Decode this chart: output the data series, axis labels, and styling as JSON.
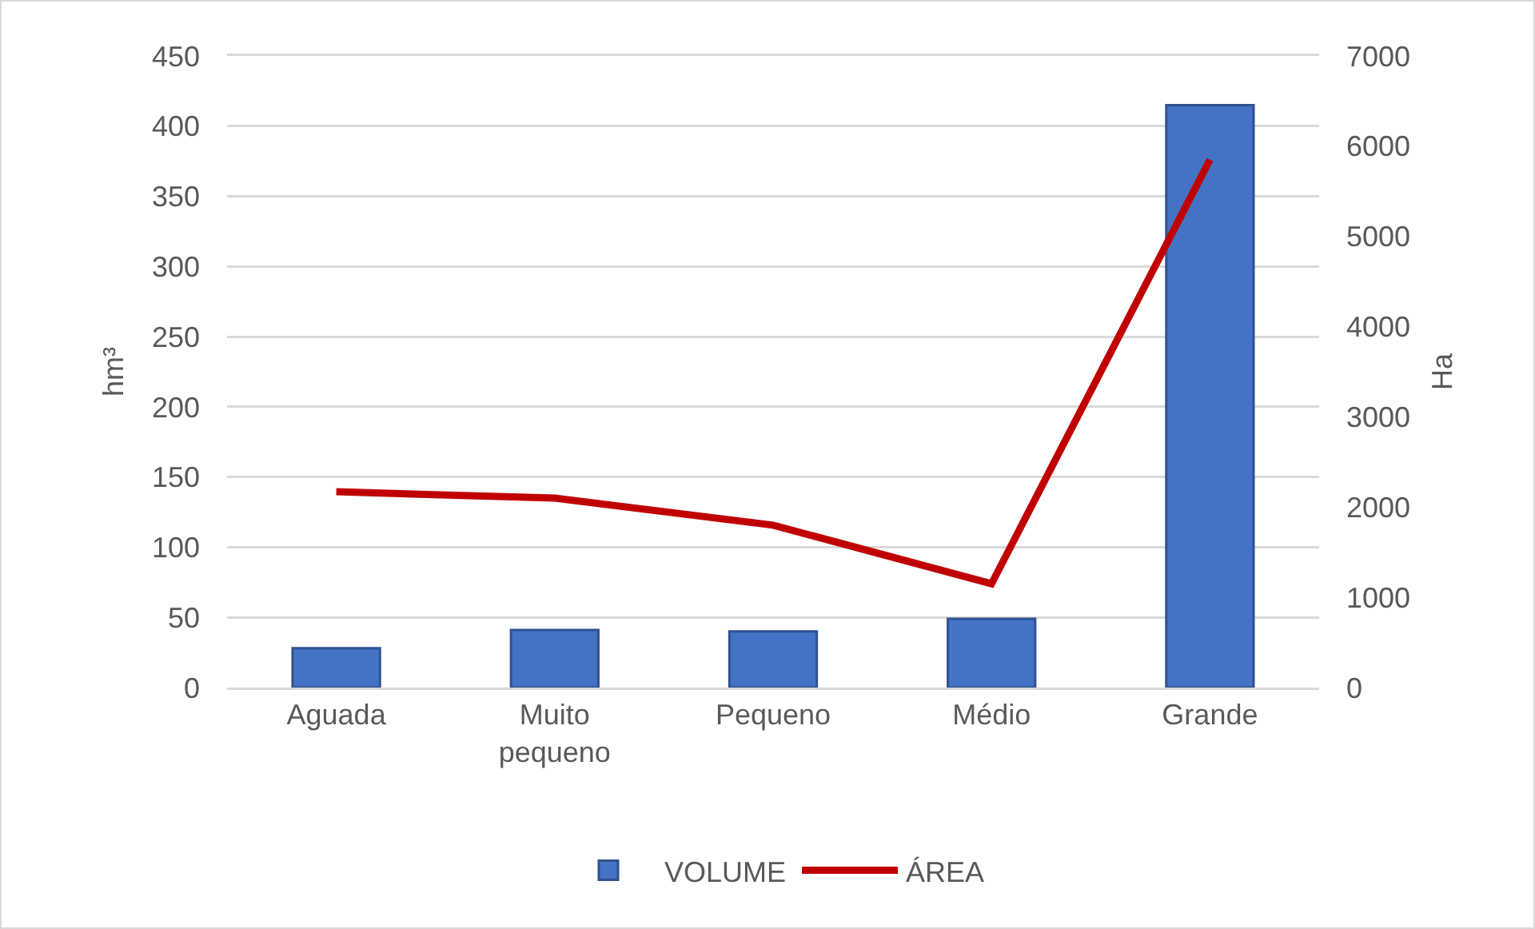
{
  "chart_data": {
    "type": "bar",
    "categories": [
      "Aguada",
      "Muito pequeno",
      "Pequeno",
      "Médio",
      "Grande"
    ],
    "series": [
      {
        "name": "VOLUME",
        "color": "#4472c4",
        "values": [
          28,
          41,
          40,
          49,
          415
        ]
      },
      {
        "name": "ÁREA",
        "type": "line",
        "axis": "y2",
        "color": "#c00000",
        "values": [
          2170,
          2100,
          1800,
          1150,
          5850
        ]
      }
    ],
    "ylabel": "hm³",
    "y2label": "Ha",
    "ylim": [
      0,
      450
    ],
    "yticks": [
      0,
      50,
      100,
      150,
      200,
      250,
      300,
      350,
      400,
      450
    ],
    "y2lim": [
      0,
      7000
    ],
    "y2ticks": [
      0,
      1000,
      2000,
      3000,
      4000,
      5000,
      6000,
      7000
    ],
    "grid": "y",
    "legend": "bottom"
  }
}
